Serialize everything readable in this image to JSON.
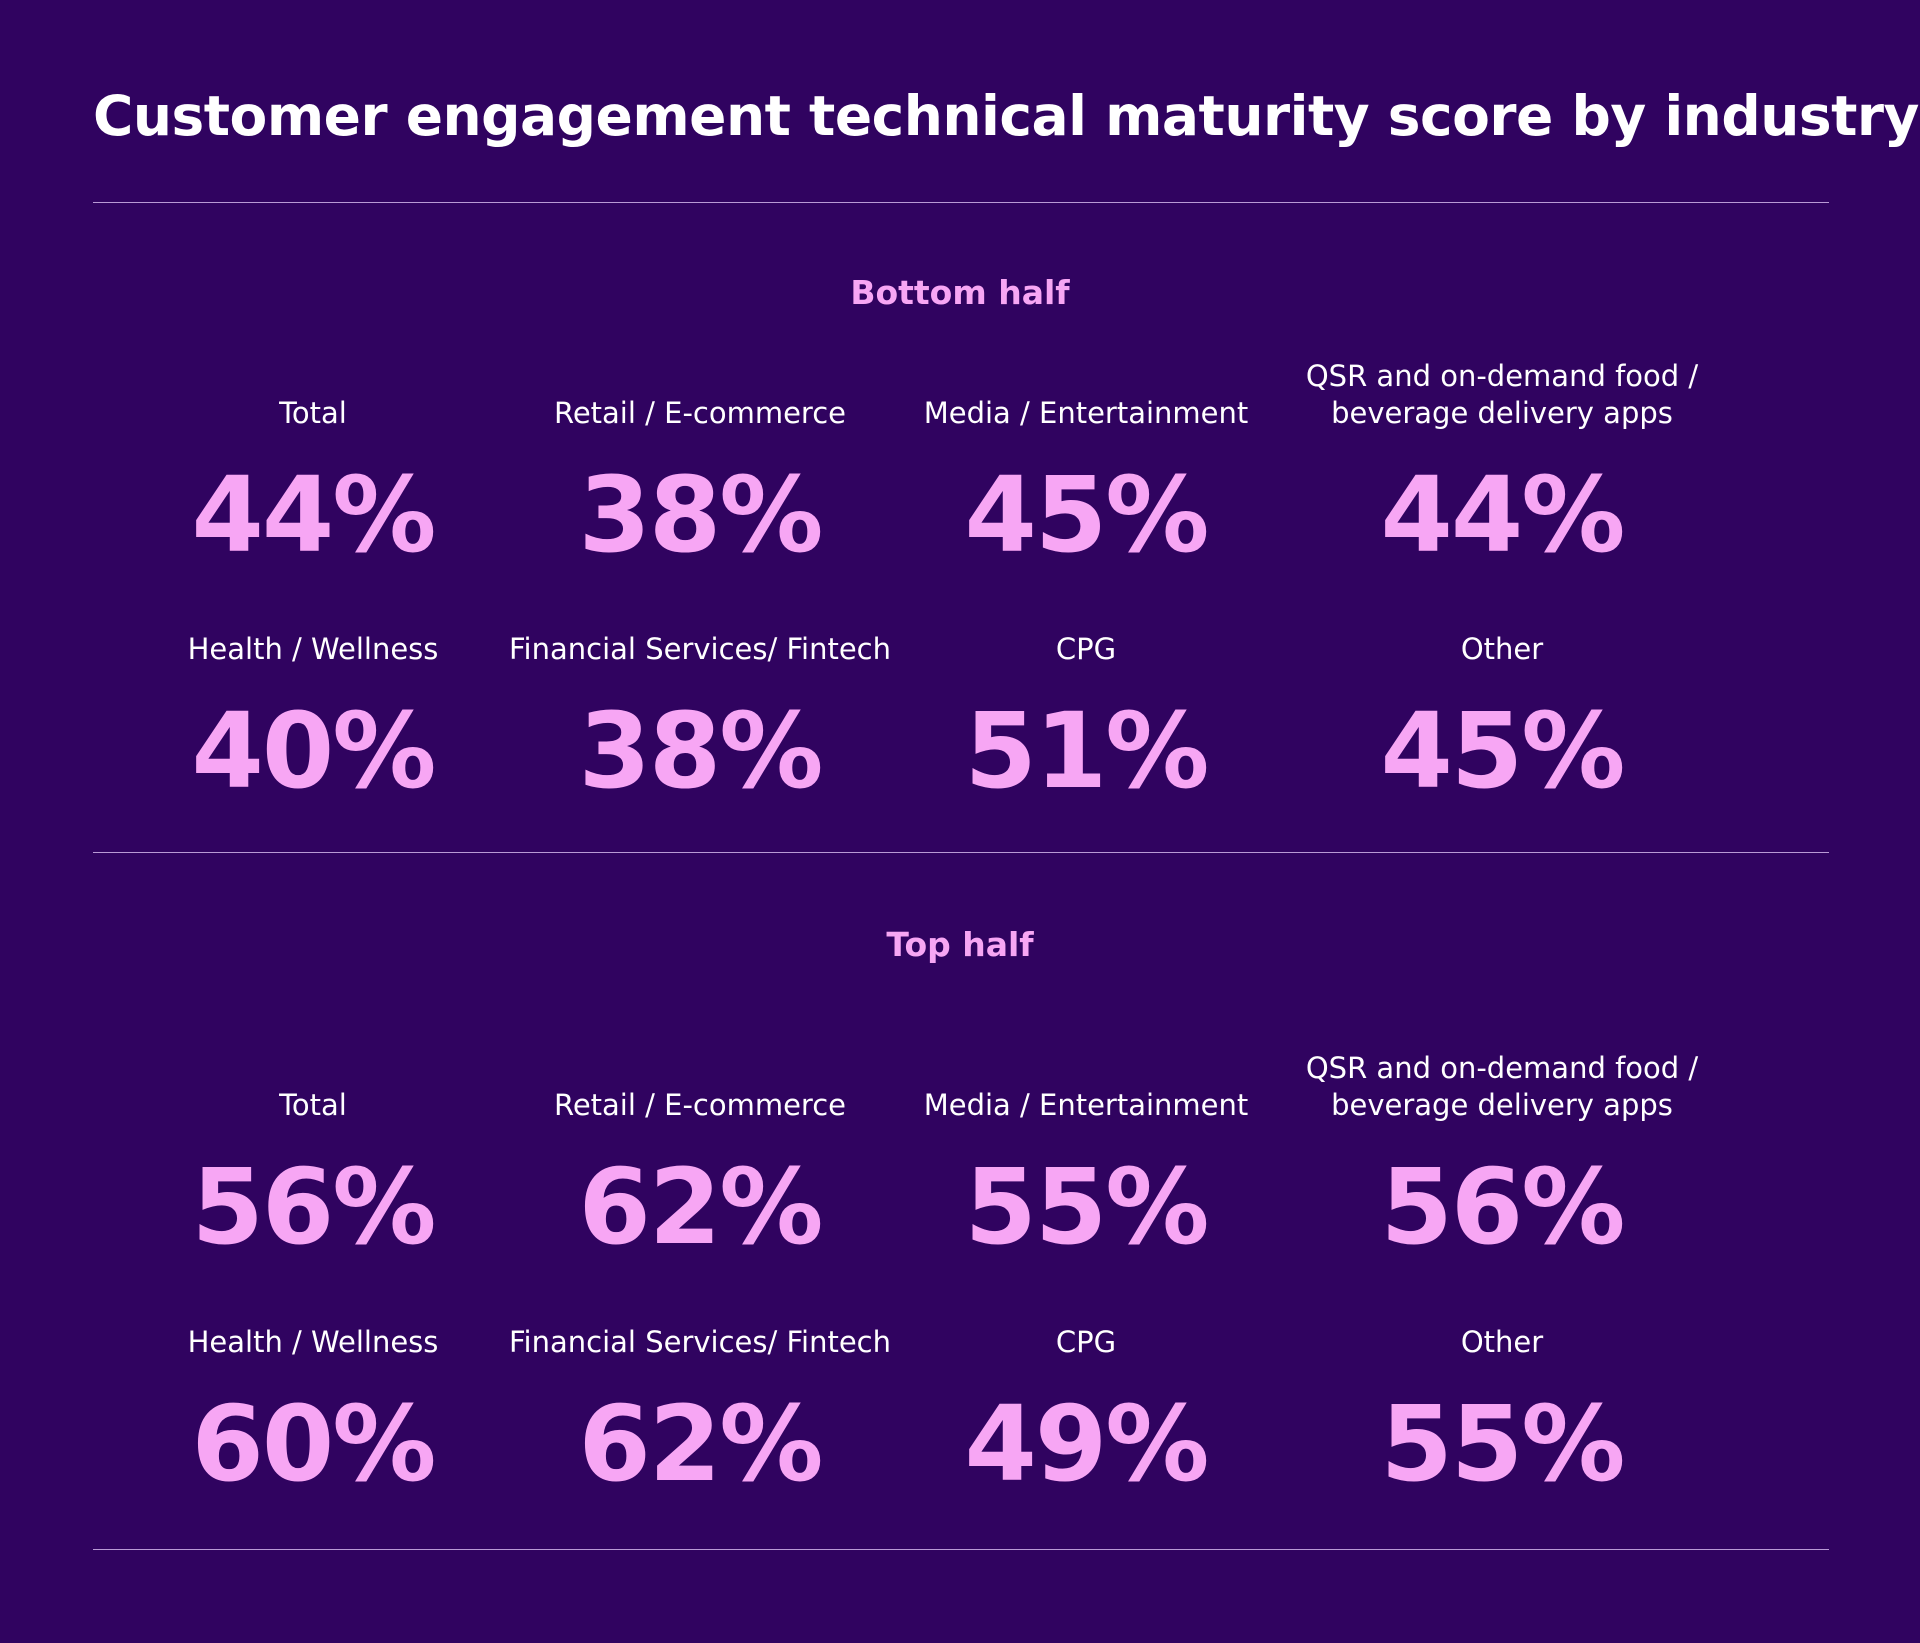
{
  "title": "Customer engagement technical maturity score by industry",
  "colors": {
    "background": "#300360",
    "accent": "#f7a6f4",
    "text": "#ffffff",
    "divider": "#b99ad6"
  },
  "chart_data": {
    "type": "table",
    "title": "Customer engagement technical maturity score by industry",
    "unit": "%",
    "sections": [
      {
        "name": "Bottom half",
        "items": [
          {
            "label": "Total",
            "value": 44,
            "display": "44%"
          },
          {
            "label": "Retail / E-commerce",
            "value": 38,
            "display": "38%"
          },
          {
            "label": "Media / Entertainment",
            "value": 45,
            "display": "45%"
          },
          {
            "label": "QSR and on-demand food / beverage delivery apps",
            "value": 44,
            "display": "44%"
          },
          {
            "label": "Health / Wellness",
            "value": 40,
            "display": "40%"
          },
          {
            "label": "Financial Services/ Fintech",
            "value": 38,
            "display": "38%"
          },
          {
            "label": "CPG",
            "value": 51,
            "display": "51%"
          },
          {
            "label": "Other",
            "value": 45,
            "display": "45%"
          }
        ]
      },
      {
        "name": "Top half",
        "items": [
          {
            "label": "Total",
            "value": 56,
            "display": "56%"
          },
          {
            "label": "Retail / E-commerce",
            "value": 62,
            "display": "62%"
          },
          {
            "label": "Media / Entertainment",
            "value": 55,
            "display": "55%"
          },
          {
            "label": "QSR and on-demand food / beverage delivery apps",
            "value": 56,
            "display": "56%"
          },
          {
            "label": "Health / Wellness",
            "value": 60,
            "display": "60%"
          },
          {
            "label": "Financial Services/ Fintech",
            "value": 62,
            "display": "62%"
          },
          {
            "label": "CPG",
            "value": 49,
            "display": "49%"
          },
          {
            "label": "Other",
            "value": 55,
            "display": "55%"
          }
        ]
      }
    ]
  }
}
